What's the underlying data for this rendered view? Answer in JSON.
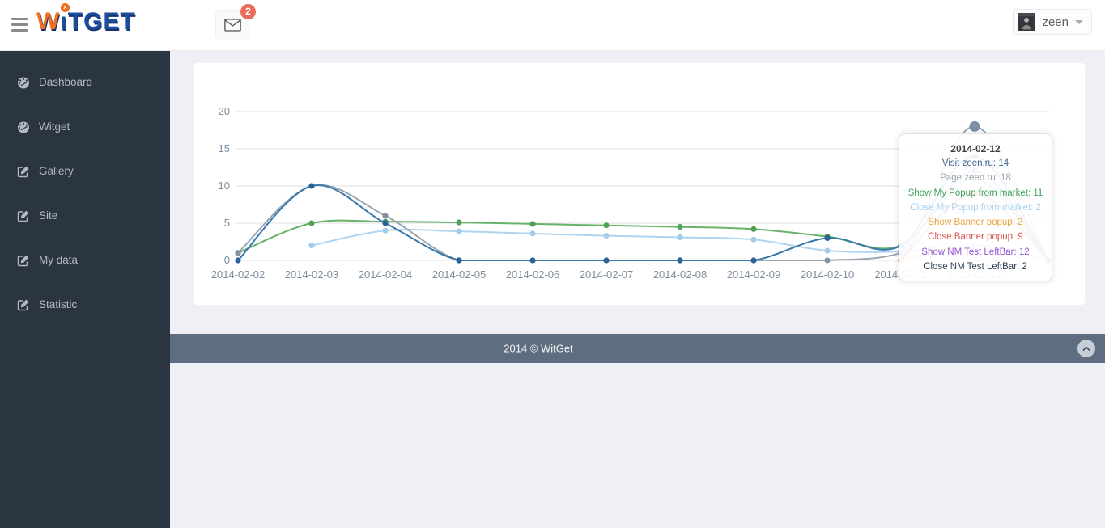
{
  "header": {
    "logo": {
      "part_w": "W",
      "part_i": "ı",
      "dot": "×",
      "part_rest": "TGET",
      "accent_color": "#f26f1d",
      "brand_color": "#1b4c9d"
    },
    "mail": {
      "badge_count": "2"
    },
    "user": {
      "name": "zeen"
    }
  },
  "sidebar": {
    "items": [
      {
        "label": "Dashboard",
        "icon": "dashboard-icon"
      },
      {
        "label": "Witget",
        "icon": "dashboard-icon"
      },
      {
        "label": "Gallery",
        "icon": "edit-icon"
      },
      {
        "label": "Site",
        "icon": "edit-icon"
      },
      {
        "label": "My data",
        "icon": "edit-icon"
      },
      {
        "label": "Statistic",
        "icon": "edit-icon"
      }
    ]
  },
  "chart_data": {
    "type": "line",
    "x_labels": [
      "2014-02-02",
      "2014-02-03",
      "2014-02-04",
      "2014-02-05",
      "2014-02-06",
      "2014-02-07",
      "2014-02-08",
      "2014-02-09",
      "2014-02-10",
      "2014-02-11",
      "2014-02-12",
      ""
    ],
    "yticks": [
      0,
      5,
      10,
      15,
      20
    ],
    "ylim": [
      0,
      20
    ],
    "grid": true,
    "grid_color": "#e0e0e0",
    "axis_label_color": "#7e8da0",
    "series": [
      {
        "name": "Visit zeen.ru",
        "color": "#3878ad",
        "point_color": "#2b6398",
        "values": [
          0,
          10,
          5,
          0,
          0,
          0,
          0,
          0,
          3,
          2,
          14,
          0
        ]
      },
      {
        "name": "Page zeen.ru",
        "color": "#9aa7b2",
        "point_color": "#8193a2",
        "values": [
          1,
          10,
          6,
          0,
          0,
          0,
          0,
          0,
          0,
          1,
          18,
          0
        ]
      },
      {
        "name": "Show My Popup from market",
        "color": "#68b26a",
        "point_color": "#52a158",
        "values": [
          1,
          5,
          5.2,
          5.1,
          4.9,
          4.7,
          4.5,
          4.2,
          3.2,
          2,
          11,
          0
        ]
      },
      {
        "name": "Close My Popup from market",
        "color": "#aed4f0",
        "point_color": "#a2cdec",
        "values": [
          null,
          2,
          4,
          3.9,
          3.6,
          3.3,
          3.1,
          2.8,
          1.3,
          1.2,
          2,
          0
        ]
      },
      {
        "name": "Show Banner popup",
        "color": "#eaaa3e",
        "point_color": "#e09c2e",
        "values": [
          null,
          null,
          null,
          null,
          null,
          null,
          null,
          null,
          null,
          0,
          2,
          0
        ]
      },
      {
        "name": "Close Banner popup",
        "color": "#d9534f",
        "point_color": "#cf4440",
        "values": [
          null,
          null,
          null,
          null,
          null,
          null,
          null,
          null,
          null,
          0,
          9,
          0
        ]
      },
      {
        "name": "Show NM Test LeftBar",
        "color": "#9b59d0",
        "point_color": "#8d4ac4",
        "values": [
          null,
          null,
          null,
          null,
          null,
          null,
          null,
          null,
          null,
          0,
          12,
          0
        ]
      },
      {
        "name": "Close NM Test LeftBar",
        "color": "#34495e",
        "point_color": "#2c3e50",
        "values": [
          null,
          null,
          null,
          null,
          null,
          null,
          null,
          null,
          null,
          0,
          2,
          0
        ]
      }
    ],
    "highlight": {
      "series_index": 1,
      "point_index": 10,
      "color": "#7d8fa2",
      "radius": 6.5
    }
  },
  "tooltip": {
    "title": "2014-02-12",
    "rows": [
      {
        "label": "Visit zeen.ru",
        "value": "14",
        "color": "#3a6291"
      },
      {
        "label": "Page zeen.ru",
        "value": "18",
        "color": "#9aa4ad"
      },
      {
        "label": "Show My Popup from market",
        "value": "11",
        "color": "#3fa45b"
      },
      {
        "label": "Close My Popup from market",
        "value": "2",
        "color": "#a9d3f2"
      },
      {
        "label": "Show Banner popup",
        "value": "2",
        "color": "#e8a33d"
      },
      {
        "label": "Close Banner popup",
        "value": "9",
        "color": "#d9534f"
      },
      {
        "label": "Show NM Test LeftBar",
        "value": "12",
        "color": "#9457d6"
      },
      {
        "label": "Close NM Test LeftBar",
        "value": "2",
        "color": "#2e3f55"
      }
    ]
  },
  "footer": {
    "copyright": "2014 © WitGet"
  }
}
